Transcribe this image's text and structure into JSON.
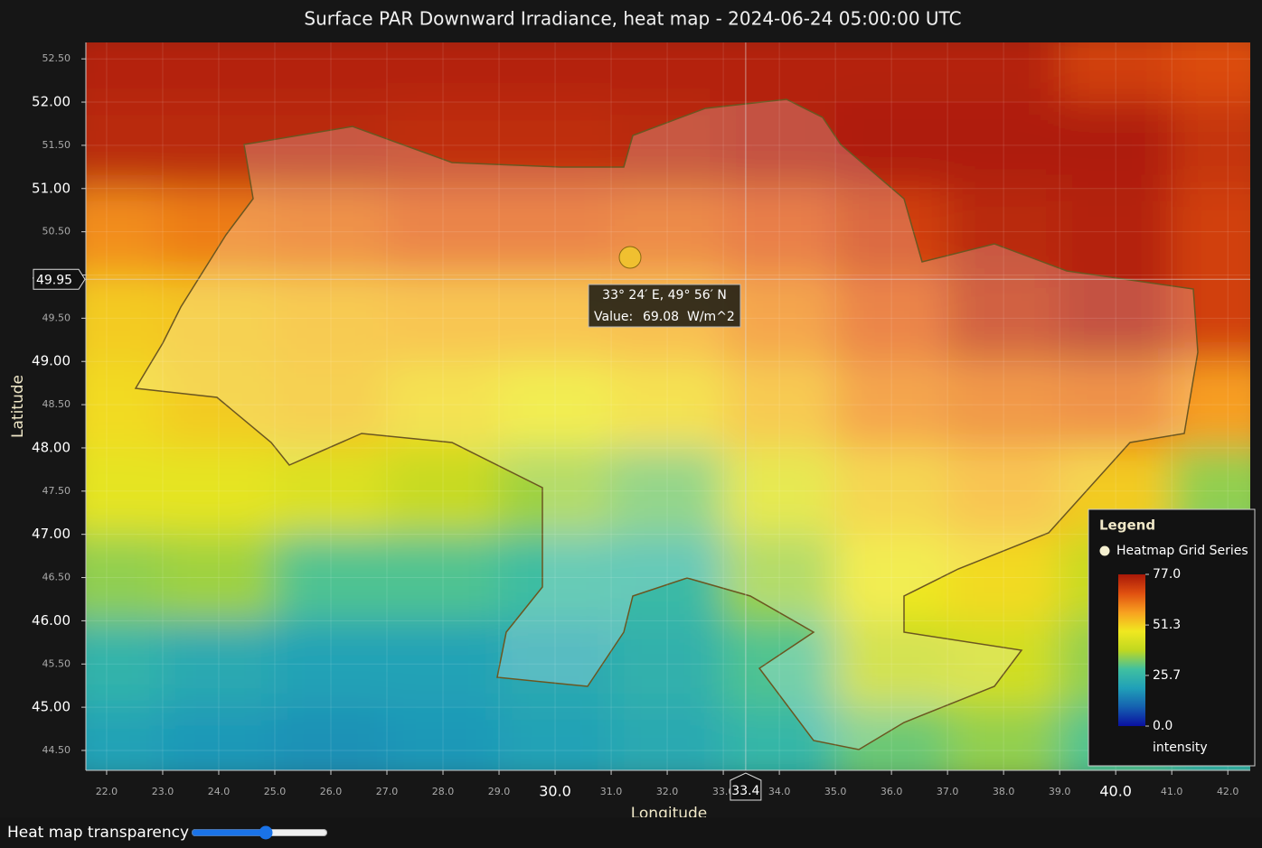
{
  "chart_data": {
    "type": "heatmap",
    "title": "Surface PAR Downward Irradiance, heat map - 2024-06-24 05:00:00 UTC",
    "x_label": "Longitude",
    "y_label": "Latitude",
    "x": [
      22,
      24,
      26,
      28,
      30,
      32,
      34,
      36,
      38,
      40,
      42
    ],
    "y": [
      52.5,
      51.5,
      50.5,
      49.5,
      48.5,
      47.5,
      46.5,
      45.5,
      44.5
    ],
    "z": [
      [
        75,
        75,
        75,
        75,
        75,
        75,
        75,
        75,
        75,
        70,
        68
      ],
      [
        74,
        74,
        74,
        73,
        73,
        74,
        75,
        76,
        76,
        76,
        72
      ],
      [
        60,
        62,
        63,
        65,
        65,
        64,
        66,
        70,
        74,
        75,
        70
      ],
      [
        52,
        53,
        54,
        55,
        55,
        56,
        60,
        65,
        72,
        75,
        70
      ],
      [
        50,
        52,
        53,
        50,
        48,
        50,
        54,
        60,
        62,
        63,
        58
      ],
      [
        46,
        46,
        44,
        40,
        36,
        33,
        45,
        52,
        55,
        52,
        35
      ],
      [
        35,
        36,
        30,
        30,
        28,
        27,
        36,
        48,
        50,
        40,
        30
      ],
      [
        25,
        22,
        20,
        20,
        22,
        24,
        30,
        40,
        42,
        35,
        28
      ],
      [
        20,
        18,
        17,
        18,
        20,
        22,
        26,
        32,
        35,
        30,
        26
      ]
    ],
    "zlim": [
      0,
      77
    ],
    "colormap": [
      "#0a10a0",
      "#1560b0",
      "#20a0b8",
      "#40c0a0",
      "#c0d820",
      "#f0e820",
      "#f8a020",
      "#e05010",
      "#a81808"
    ],
    "xlim": [
      21.63,
      42.4
    ],
    "ylim": [
      44.27,
      52.69
    ],
    "xticks": [
      {
        "value": 22,
        "label": "22.0"
      },
      {
        "value": 23,
        "label": "23.0"
      },
      {
        "value": 24,
        "label": "24.0"
      },
      {
        "value": 25,
        "label": "25.0"
      },
      {
        "value": 26,
        "label": "26.0"
      },
      {
        "value": 27,
        "label": "27.0"
      },
      {
        "value": 28,
        "label": "28.0"
      },
      {
        "value": 29,
        "label": "29.0"
      },
      {
        "value": 30,
        "label": "30.0"
      },
      {
        "value": 31,
        "label": "31.0"
      },
      {
        "value": 32,
        "label": "32.0"
      },
      {
        "value": 33,
        "label": "33.0"
      },
      {
        "value": 34,
        "label": "34.0"
      },
      {
        "value": 35,
        "label": "35.0"
      },
      {
        "value": 36,
        "label": "36.0"
      },
      {
        "value": 37,
        "label": "37.0"
      },
      {
        "value": 38,
        "label": "38.0"
      },
      {
        "value": 39,
        "label": "39.0"
      },
      {
        "value": 40,
        "label": "40.0"
      },
      {
        "value": 41,
        "label": "41.0"
      },
      {
        "value": 42,
        "label": "42.0"
      }
    ],
    "yticks": [
      {
        "value": 44.5,
        "label": "44.50"
      },
      {
        "value": 45,
        "label": "45.00"
      },
      {
        "value": 45.5,
        "label": "45.50"
      },
      {
        "value": 46,
        "label": "46.00"
      },
      {
        "value": 46.5,
        "label": "46.50"
      },
      {
        "value": 47,
        "label": "47.00"
      },
      {
        "value": 47.5,
        "label": "47.50"
      },
      {
        "value": 48,
        "label": "48.00"
      },
      {
        "value": 48.5,
        "label": "48.50"
      },
      {
        "value": 49,
        "label": "49.00"
      },
      {
        "value": 49.5,
        "label": "49.50"
      },
      {
        "value": 50,
        "label": "50.00"
      },
      {
        "value": 50.5,
        "label": "50.50"
      },
      {
        "value": 51,
        "label": "51.00"
      },
      {
        "value": 51.5,
        "label": "51.50"
      },
      {
        "value": 52,
        "label": "52.00"
      },
      {
        "value": 52.5,
        "label": "52.50"
      }
    ],
    "grid": true,
    "crosshair": {
      "x": 33.4,
      "y": 49.95
    },
    "tooltip": {
      "position": "33° 24′ E, 49° 56′ N",
      "value_label": "Value:",
      "value": 69.08,
      "unit": "W/m^2"
    },
    "legend": {
      "title": "Legend",
      "series_name": "Heatmap Grid Series",
      "position": "lower right",
      "ticks": [
        {
          "value": 77,
          "label": "77.0"
        },
        51.3,
        25.7,
        {
          "value": 0,
          "label": "0.0"
        }
      ],
      "scale_label": "intensity"
    }
  },
  "controls": {
    "transparency_label": "Heat map transparency",
    "transparency": 55
  }
}
